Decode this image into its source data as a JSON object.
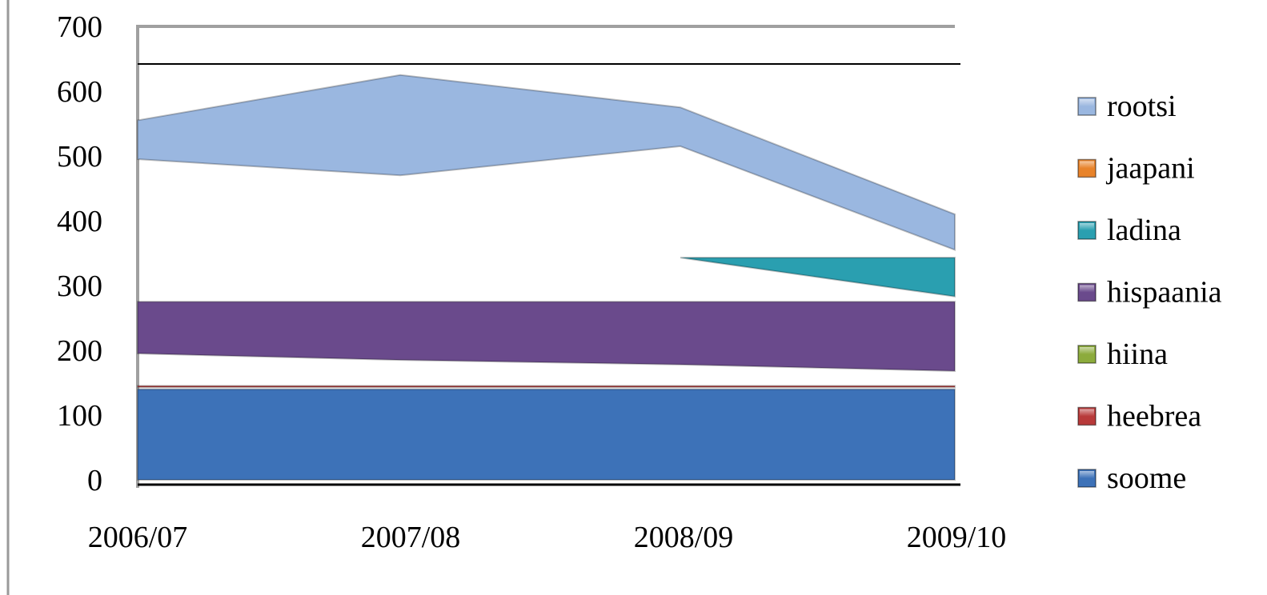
{
  "chart_data": {
    "type": "area",
    "categories": [
      "2006/07",
      "2007/08",
      "2008/09",
      "2009/10"
    ],
    "ylim": [
      0,
      700
    ],
    "yticks": [
      0,
      100,
      200,
      300,
      400,
      500,
      600,
      700
    ],
    "legend_position": "right",
    "series": [
      {
        "name": "soome",
        "color": "#3d72b8",
        "lower": [
          0,
          0,
          0,
          0
        ],
        "upper": [
          140,
          140,
          140,
          140
        ]
      },
      {
        "name": "heebrea",
        "color": "#b83a3a",
        "lower": [
          143,
          143,
          143,
          143
        ],
        "upper": [
          145,
          145,
          145,
          145
        ]
      },
      {
        "name": "hiina",
        "color": "#8cab3c",
        "lower": [
          0,
          0,
          0,
          0
        ],
        "upper": [
          0,
          0,
          0,
          0
        ]
      },
      {
        "name": "hispaania",
        "color": "#6a4a8c",
        "lower": [
          195,
          185,
          178,
          168
        ],
        "upper": [
          275,
          275,
          275,
          275
        ]
      },
      {
        "name": "ladina",
        "color": "#2a9fb0",
        "lower": [
          343,
          343,
          343,
          283
        ],
        "upper": [
          343,
          343,
          343,
          343
        ]
      },
      {
        "name": "jaapani",
        "color": "#e8832a",
        "lower": [
          0,
          0,
          0,
          0
        ],
        "upper": [
          0,
          0,
          0,
          0
        ]
      },
      {
        "name": "rootsi",
        "color": "#9ab7e0",
        "lower": [
          495,
          470,
          515,
          355
        ],
        "upper": [
          555,
          625,
          575,
          410
        ]
      }
    ],
    "legend_order": [
      "rootsi",
      "jaapani",
      "ladina",
      "hispaania",
      "hiina",
      "heebrea",
      "soome"
    ]
  }
}
